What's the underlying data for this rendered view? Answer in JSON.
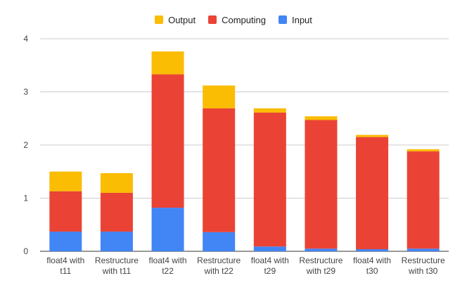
{
  "chart_data": {
    "type": "bar",
    "stacked": true,
    "categories": [
      [
        "float4 with",
        "t11"
      ],
      [
        "Restructure",
        "with t11"
      ],
      [
        "float4 with",
        "t22"
      ],
      [
        "Restructure",
        "with t22"
      ],
      [
        "float4 with",
        "t29"
      ],
      [
        "Restructure",
        "with t29"
      ],
      [
        "float4 with",
        "t30"
      ],
      [
        "Restructure",
        "with t30"
      ]
    ],
    "series": [
      {
        "name": "Input",
        "color": "#4285F4",
        "values": [
          0.37,
          0.37,
          0.82,
          0.36,
          0.09,
          0.05,
          0.04,
          0.05
        ]
      },
      {
        "name": "Computing",
        "color": "#EA4335",
        "values": [
          0.76,
          0.73,
          2.51,
          2.33,
          2.52,
          2.42,
          2.11,
          1.83
        ]
      },
      {
        "name": "Output",
        "color": "#FBBC04",
        "values": [
          0.37,
          0.37,
          0.43,
          0.43,
          0.08,
          0.07,
          0.04,
          0.04
        ]
      }
    ],
    "legend_order": [
      "Output",
      "Computing",
      "Input"
    ],
    "legend_position": "top-center",
    "ylim": [
      0,
      4
    ],
    "yticks": [
      0,
      1,
      2,
      3,
      4
    ],
    "grid": true,
    "title": "",
    "xlabel": "",
    "ylabel": ""
  }
}
